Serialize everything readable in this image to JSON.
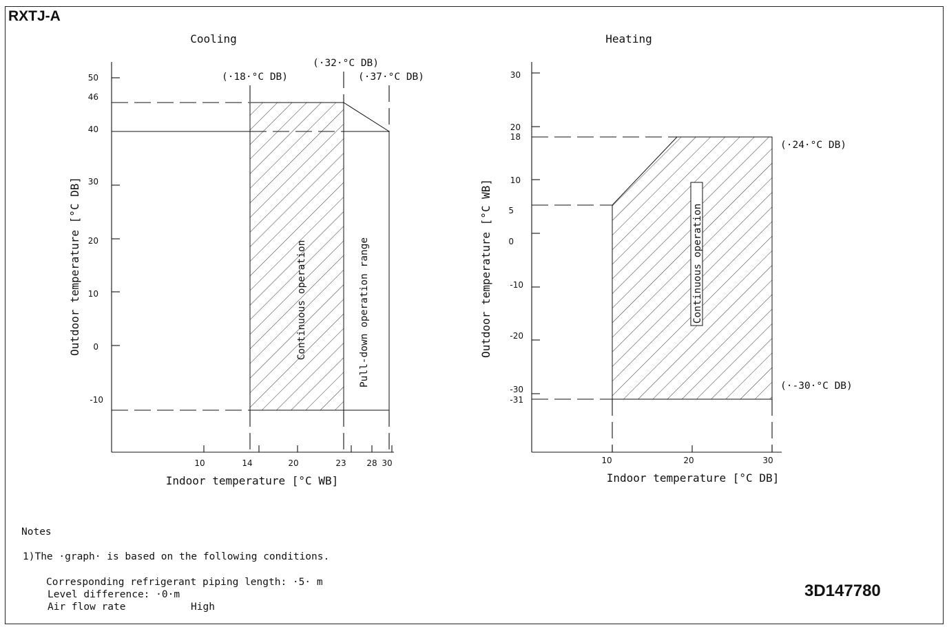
{
  "model": "RXTJ-A",
  "drawing_number": "3D147780",
  "cooling": {
    "title": "Cooling",
    "xlabel": "Indoor temperature [°C WB]",
    "ylabel": "Outdoor temperature [°C DB]",
    "x_ticks": [
      "10",
      "14",
      "20",
      "23",
      "28",
      "30"
    ],
    "y_ticks": [
      "50",
      "46",
      "40",
      "30",
      "20",
      "10",
      "0",
      "-10"
    ],
    "annotations": [
      "(·18·°C DB)",
      "(·32·°C DB)",
      "(·37·°C DB)"
    ],
    "region_continuous": "Continuous operation",
    "region_pulldown": "Pull-down operation range",
    "continuous_polygon": [
      [
        14,
        -10
      ],
      [
        14,
        46
      ],
      [
        23,
        46
      ],
      [
        23,
        -10
      ]
    ],
    "pulldown_polygon": [
      [
        23,
        46
      ],
      [
        30,
        40
      ],
      [
        30,
        -10
      ],
      [
        23,
        -10
      ]
    ]
  },
  "heating": {
    "title": "Heating",
    "xlabel": "Indoor temperature [°C DB]",
    "ylabel": "Outdoor temperature [°C WB]",
    "x_ticks": [
      "10",
      "20",
      "30"
    ],
    "y_ticks": [
      "30",
      "20",
      "18",
      "10",
      "5",
      "0",
      "-10",
      "-20",
      "-30",
      "-31"
    ],
    "annotations": [
      "(·24·°C DB)",
      "(·-30·°C DB)"
    ],
    "region_continuous": "Continuous operation",
    "continuous_polygon": [
      [
        10,
        -31
      ],
      [
        10,
        5
      ],
      [
        20,
        18
      ],
      [
        30,
        18
      ],
      [
        30,
        -31
      ]
    ]
  },
  "notes": {
    "heading": "Notes",
    "line1": "1)The ·graph· is based on the following conditions.",
    "line2": "Corresponding refrigerant piping length: ·5· m",
    "line3": "Level difference: ·0·m",
    "line4_label": "Air flow rate",
    "line4_value": "High"
  }
}
